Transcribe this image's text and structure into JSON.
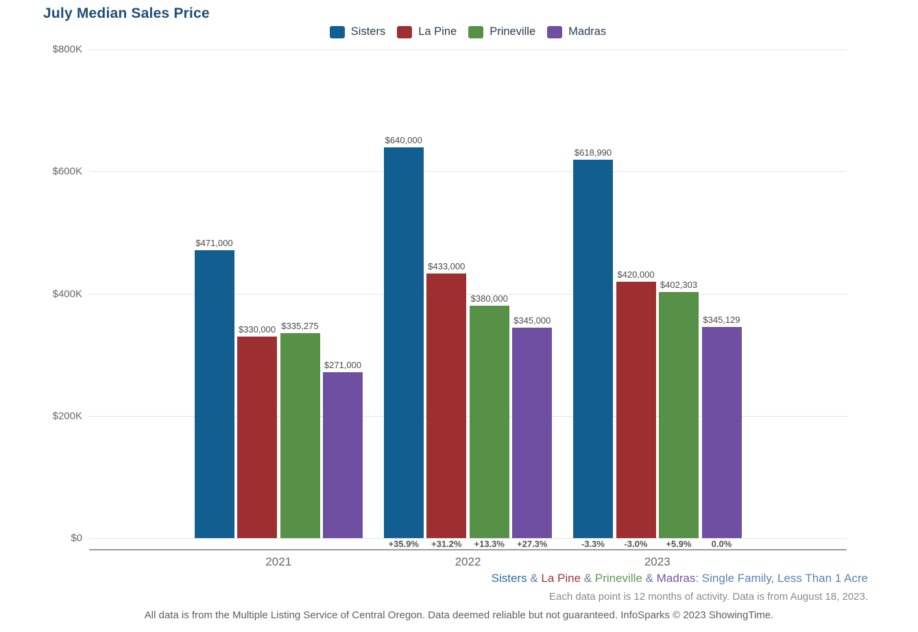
{
  "page": {
    "title": "July Median Sales Price"
  },
  "chart_data": {
    "type": "bar",
    "title": "July Median Sales Price",
    "categories": [
      "2021",
      "2022",
      "2023"
    ],
    "series": [
      {
        "name": "Sisters",
        "color": "#135e90",
        "values": [
          471000,
          640000,
          618990
        ],
        "labels": [
          "$471,000",
          "$640,000",
          "$618,990"
        ],
        "pct_change": [
          null,
          "+35.9%",
          "-3.3%"
        ]
      },
      {
        "name": "La Pine",
        "color": "#9e2f31",
        "values": [
          330000,
          433000,
          420000
        ],
        "labels": [
          "$330,000",
          "$433,000",
          "$420,000"
        ],
        "pct_change": [
          null,
          "+31.2%",
          "-3.0%"
        ]
      },
      {
        "name": "Prineville",
        "color": "#569147",
        "values": [
          335275,
          380000,
          402303
        ],
        "labels": [
          "$335,275",
          "$380,000",
          "$402,303"
        ],
        "pct_change": [
          null,
          "+13.3%",
          "+5.9%"
        ]
      },
      {
        "name": "Madras",
        "color": "#6f4fa1",
        "values": [
          271000,
          345000,
          345129
        ],
        "labels": [
          "$271,000",
          "$345,000",
          "$345,129"
        ],
        "pct_change": [
          null,
          "+27.3%",
          "0.0%"
        ]
      }
    ],
    "y_axis": {
      "min": 0,
      "max": 800000,
      "ticks": [
        {
          "label": "$800K",
          "value": 800000
        },
        {
          "label": "$600K",
          "value": 600000
        },
        {
          "label": "$400K",
          "value": 400000
        },
        {
          "label": "$200K",
          "value": 200000
        },
        {
          "label": "$0",
          "value": 0
        }
      ]
    },
    "legend_position": "top",
    "grid": true
  },
  "footer": {
    "series_note_segments": [
      {
        "text": "Sisters",
        "color": "#2e6da8"
      },
      {
        "text": " & ",
        "color": "#60809f"
      },
      {
        "text": "La Pine",
        "color": "#a23537"
      },
      {
        "text": " & ",
        "color": "#60809f"
      },
      {
        "text": "Prineville",
        "color": "#5d9b50"
      },
      {
        "text": " & ",
        "color": "#60809f"
      },
      {
        "text": "Madras",
        "color": "#7455a5"
      },
      {
        "text": ": Single Family, Less Than 1 Acre",
        "color": "#5b83b2"
      }
    ],
    "data_note": "Each data point is 12 months of activity. Data is from August 18, 2023.",
    "disclaimer": "All data is from the Multiple Listing Service of Central Oregon. Data deemed reliable but not guaranteed. InfoSparks © 2023 ShowingTime."
  }
}
